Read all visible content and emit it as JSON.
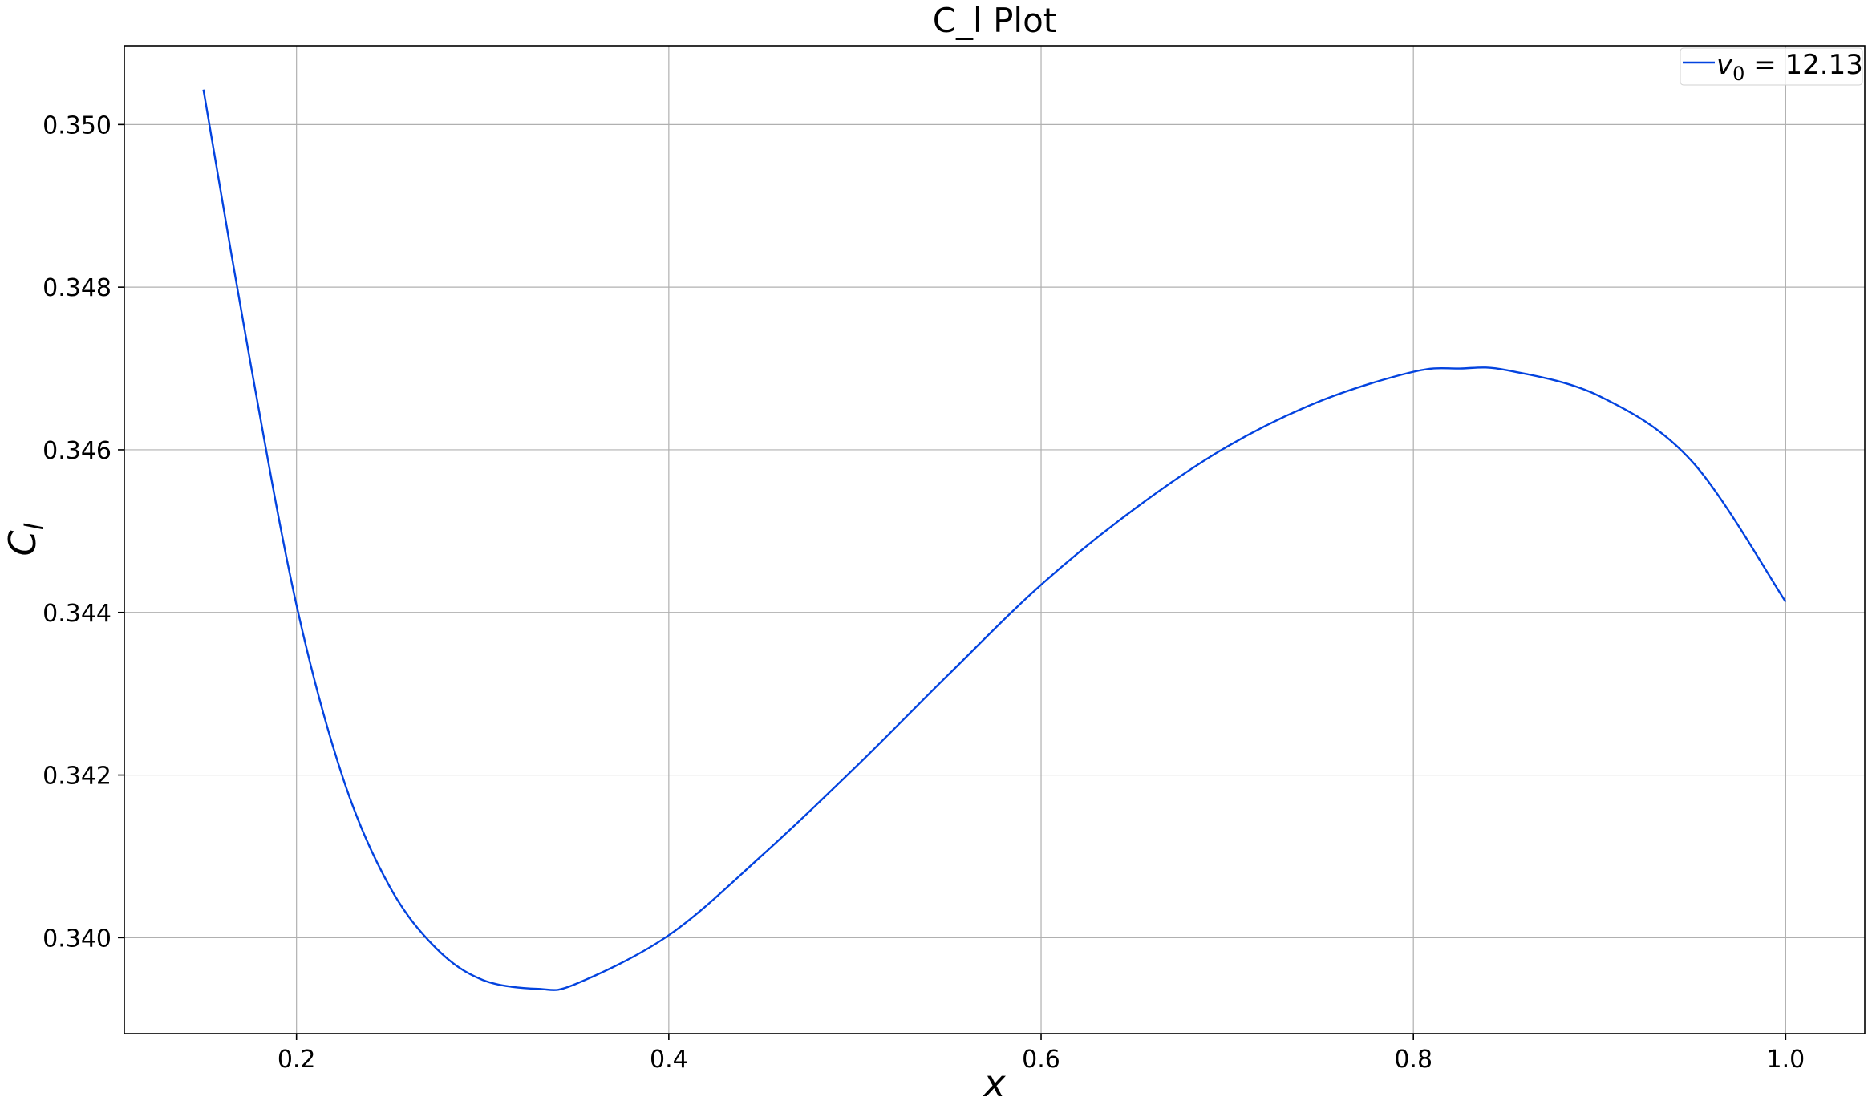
{
  "chart_data": {
    "type": "line",
    "title": "C_l Plot",
    "xlabel": "x",
    "ylabel": "C",
    "ylabel_subscript": "l",
    "xlim": [
      0.1075,
      1.0425
    ],
    "ylim": [
      0.33882,
      0.35097
    ],
    "x_ticks": [
      {
        "value": 0.2,
        "label": "0.2"
      },
      {
        "value": 0.4,
        "label": "0.4"
      },
      {
        "value": 0.6,
        "label": "0.6"
      },
      {
        "value": 0.8,
        "label": "0.8"
      },
      {
        "value": 1.0,
        "label": "1.0"
      }
    ],
    "y_ticks": [
      {
        "value": 0.34,
        "label": "0.340"
      },
      {
        "value": 0.342,
        "label": "0.342"
      },
      {
        "value": 0.344,
        "label": "0.344"
      },
      {
        "value": 0.346,
        "label": "0.346"
      },
      {
        "value": 0.348,
        "label": "0.348"
      },
      {
        "value": 0.35,
        "label": "0.350"
      }
    ],
    "grid": true,
    "legend_position": "top-right",
    "series": [
      {
        "name": "v",
        "name_subscript": "0",
        "name_suffix": " = 12.13",
        "color": "#0343df",
        "x": [
          0.15,
          0.175,
          0.2,
          0.225,
          0.25,
          0.275,
          0.3,
          0.33,
          0.35,
          0.4,
          0.45,
          0.5,
          0.55,
          0.6,
          0.65,
          0.7,
          0.75,
          0.8,
          0.825,
          0.85,
          0.9,
          0.95,
          1.0
        ],
        "y": [
          0.35043,
          0.3471,
          0.34409,
          0.34196,
          0.34063,
          0.33987,
          0.33948,
          0.33937,
          0.33943,
          0.34003,
          0.34101,
          0.34209,
          0.34323,
          0.34434,
          0.34527,
          0.34604,
          0.3466,
          0.34696,
          0.347,
          0.34698,
          0.34666,
          0.34585,
          0.34413
        ]
      }
    ]
  }
}
